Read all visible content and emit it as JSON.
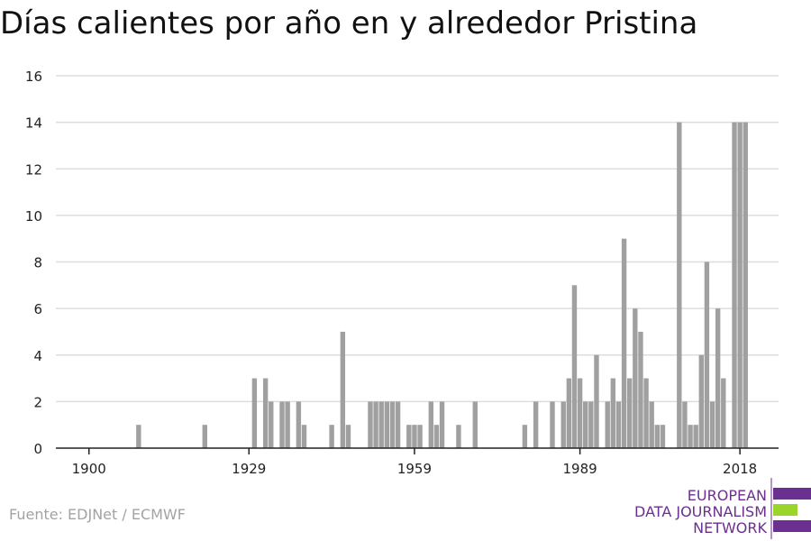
{
  "title": "Días calientes por año en y alrededor Pristina",
  "source": "Fuente: EDJNet / ECMWF",
  "logo": {
    "lines": [
      "EUROPEAN",
      "DATA JOURNALISM",
      "NETWORK"
    ],
    "purple": "#6b2f8f",
    "green": "#9bd42a"
  },
  "colors": {
    "bar": "#a0a0a0",
    "grid": "#dddddd",
    "axis": "#222222"
  },
  "chart_data": {
    "type": "bar",
    "title": "Días calientes por año en y alrededor Pristina",
    "xlabel": "",
    "ylabel": "",
    "xlim": [
      1894,
      2025
    ],
    "ylim": [
      0,
      16
    ],
    "y_ticks": [
      0,
      2,
      4,
      6,
      8,
      10,
      12,
      14,
      16
    ],
    "x_ticks": [
      1900,
      1929,
      1959,
      1989,
      2018
    ],
    "grid": true,
    "x": [
      1909,
      1921,
      1930,
      1932,
      1933,
      1935,
      1936,
      1938,
      1939,
      1944,
      1946,
      1947,
      1951,
      1952,
      1953,
      1954,
      1955,
      1956,
      1958,
      1959,
      1960,
      1962,
      1963,
      1964,
      1967,
      1970,
      1979,
      1981,
      1984,
      1986,
      1987,
      1988,
      1989,
      1990,
      1991,
      1992,
      1994,
      1995,
      1996,
      1997,
      1998,
      1999,
      2000,
      2001,
      2002,
      2003,
      2004,
      2007,
      2008,
      2009,
      2010,
      2011,
      2012,
      2013,
      2014,
      2015,
      2017,
      2018,
      2019
    ],
    "values": [
      1,
      1,
      3,
      3,
      2,
      2,
      2,
      2,
      1,
      1,
      5,
      1,
      2,
      2,
      2,
      2,
      2,
      2,
      1,
      1,
      1,
      2,
      1,
      2,
      1,
      2,
      1,
      2,
      2,
      2,
      3,
      7,
      3,
      2,
      2,
      4,
      2,
      3,
      2,
      9,
      3,
      6,
      5,
      3,
      2,
      1,
      1,
      14,
      2,
      1,
      1,
      4,
      8,
      2,
      6,
      3,
      14,
      14,
      14
    ]
  }
}
